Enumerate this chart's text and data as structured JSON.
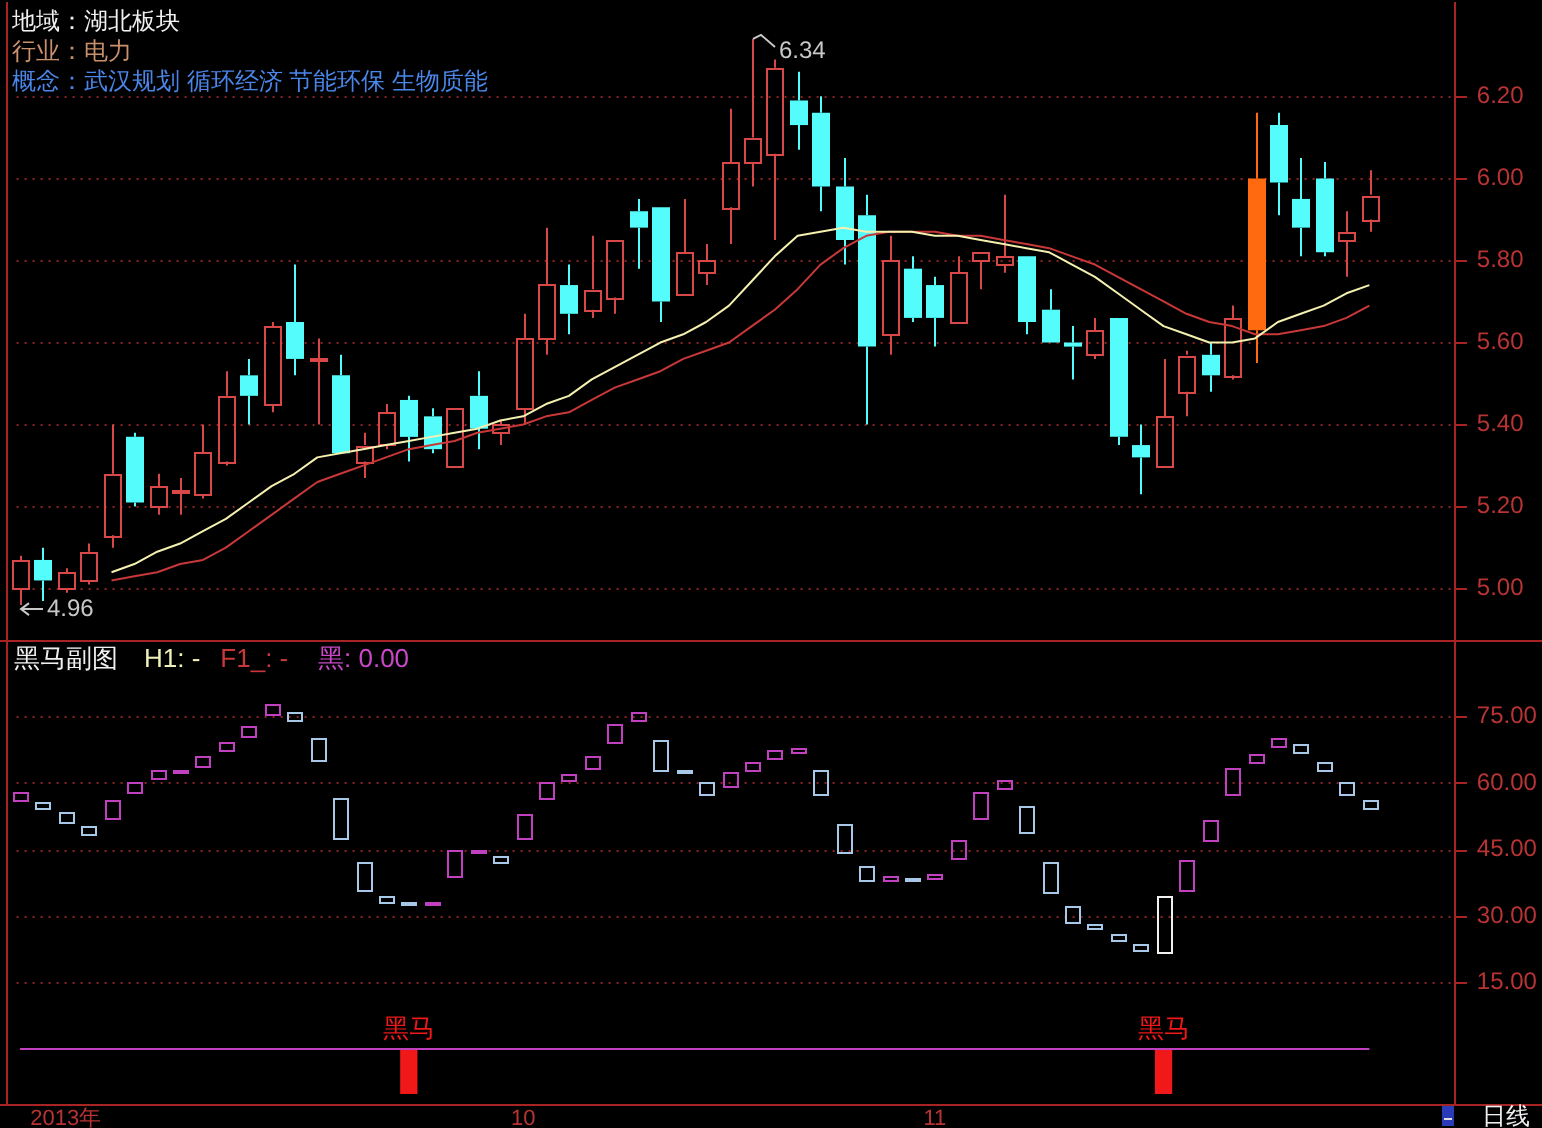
{
  "chart_data": [
    {
      "type": "candlestick",
      "categories": [
        null,
        null,
        null,
        null,
        null,
        null,
        null,
        null,
        null,
        null,
        null,
        null,
        null,
        null,
        null,
        null,
        null,
        null,
        null,
        null,
        null,
        null,
        null,
        null,
        null,
        null,
        null,
        null,
        null,
        null,
        null,
        null,
        null,
        null,
        null,
        null,
        null,
        null,
        null,
        null,
        null,
        null,
        null,
        null,
        null,
        null,
        null,
        null,
        null,
        null,
        null,
        null,
        null,
        null,
        null,
        null,
        null,
        null,
        null,
        null
      ],
      "ohlc": [
        [
          5.0,
          5.08,
          4.96,
          5.07
        ],
        [
          5.07,
          5.1,
          4.97,
          5.02
        ],
        [
          5.0,
          5.05,
          4.99,
          5.04
        ],
        [
          5.02,
          5.11,
          5.01,
          5.09
        ],
        [
          5.13,
          5.4,
          5.1,
          5.28
        ],
        [
          5.37,
          5.38,
          5.2,
          5.21
        ],
        [
          5.2,
          5.28,
          5.18,
          5.25
        ],
        [
          5.24,
          5.27,
          5.18,
          5.24
        ],
        [
          5.23,
          5.4,
          5.22,
          5.33
        ],
        [
          5.31,
          5.53,
          5.3,
          5.47
        ],
        [
          5.52,
          5.56,
          5.4,
          5.47
        ],
        [
          5.45,
          5.65,
          5.43,
          5.64
        ],
        [
          5.65,
          5.79,
          5.52,
          5.56
        ],
        [
          5.56,
          5.61,
          5.4,
          5.56
        ],
        [
          5.52,
          5.57,
          5.33,
          5.33
        ],
        [
          5.31,
          5.38,
          5.27,
          5.35
        ],
        [
          5.35,
          5.45,
          5.34,
          5.43
        ],
        [
          5.46,
          5.47,
          5.31,
          5.37
        ],
        [
          5.42,
          5.44,
          5.33,
          5.34
        ],
        [
          5.3,
          5.44,
          5.3,
          5.44
        ],
        [
          5.47,
          5.53,
          5.34,
          5.39
        ],
        [
          5.38,
          5.41,
          5.35,
          5.4
        ],
        [
          5.44,
          5.67,
          5.4,
          5.61
        ],
        [
          5.61,
          5.88,
          5.57,
          5.74
        ],
        [
          5.74,
          5.79,
          5.62,
          5.67
        ],
        [
          5.68,
          5.86,
          5.66,
          5.73
        ],
        [
          5.71,
          5.85,
          5.67,
          5.85
        ],
        [
          5.92,
          5.95,
          5.78,
          5.88
        ],
        [
          5.93,
          5.93,
          5.65,
          5.7
        ],
        [
          5.72,
          5.95,
          5.72,
          5.82
        ],
        [
          5.77,
          5.84,
          5.74,
          5.8
        ],
        [
          5.93,
          6.17,
          5.84,
          6.04
        ],
        [
          6.04,
          6.34,
          5.98,
          6.1
        ],
        [
          6.06,
          6.29,
          5.85,
          6.27
        ],
        [
          6.19,
          6.26,
          6.07,
          6.13
        ],
        [
          6.16,
          6.2,
          5.92,
          5.98
        ],
        [
          5.98,
          6.05,
          5.79,
          5.85
        ],
        [
          5.91,
          5.96,
          5.4,
          5.59
        ],
        [
          5.62,
          5.86,
          5.57,
          5.8
        ],
        [
          5.78,
          5.81,
          5.65,
          5.66
        ],
        [
          5.74,
          5.76,
          5.59,
          5.66
        ],
        [
          5.65,
          5.81,
          5.65,
          5.77
        ],
        [
          5.8,
          5.82,
          5.73,
          5.82
        ],
        [
          5.79,
          5.96,
          5.77,
          5.81
        ],
        [
          5.81,
          5.81,
          5.62,
          5.65
        ],
        [
          5.68,
          5.73,
          5.6,
          5.6
        ],
        [
          5.6,
          5.64,
          5.51,
          5.59
        ],
        [
          5.57,
          5.66,
          5.56,
          5.63
        ],
        [
          5.66,
          5.66,
          5.35,
          5.37
        ],
        [
          5.35,
          5.4,
          5.23,
          5.32
        ],
        [
          5.3,
          5.56,
          5.3,
          5.42
        ],
        [
          5.48,
          5.58,
          5.42,
          5.57
        ],
        [
          5.57,
          5.6,
          5.48,
          5.52
        ],
        [
          5.52,
          5.69,
          5.51,
          5.66
        ],
        [
          5.63,
          6.16,
          5.55,
          6.0
        ],
        [
          6.13,
          6.16,
          5.91,
          5.99
        ],
        [
          5.95,
          6.05,
          5.81,
          5.88
        ],
        [
          6.0,
          6.04,
          5.81,
          5.82
        ],
        [
          5.85,
          5.92,
          5.76,
          5.87
        ],
        [
          5.9,
          6.02,
          5.87,
          5.96
        ]
      ],
      "colors": [
        "#d84848",
        "#54fcfc",
        "#d84848",
        "#d84848",
        "#d84848",
        "#54fcfc",
        "#d84848",
        "#d84848",
        "#d84848",
        "#d84848",
        "#54fcfc",
        "#d84848",
        "#54fcfc",
        "#d84848",
        "#54fcfc",
        "#d84848",
        "#d84848",
        "#54fcfc",
        "#54fcfc",
        "#d84848",
        "#54fcfc",
        "#d84848",
        "#d84848",
        "#d84848",
        "#54fcfc",
        "#d84848",
        "#d84848",
        "#54fcfc",
        "#54fcfc",
        "#d84848",
        "#d84848",
        "#d84848",
        "#d84848",
        "#d84848",
        "#54fcfc",
        "#54fcfc",
        "#54fcfc",
        "#54fcfc",
        "#d84848",
        "#54fcfc",
        "#54fcfc",
        "#d84848",
        "#d84848",
        "#d84848",
        "#54fcfc",
        "#54fcfc",
        "#54fcfc",
        "#d84848",
        "#54fcfc",
        "#54fcfc",
        "#d84848",
        "#d84848",
        "#54fcfc",
        "#d84848",
        "#ff6a10",
        "#54fcfc",
        "#54fcfc",
        "#54fcfc",
        "#d84848",
        "#d84848"
      ],
      "series": [
        {
          "type": "line",
          "color": "#f4f0b0",
          "values": [
            null,
            null,
            null,
            null,
            5.04,
            5.06,
            5.09,
            5.11,
            5.14,
            5.17,
            5.21,
            5.25,
            5.28,
            5.32,
            5.33,
            5.34,
            5.35,
            5.36,
            5.37,
            5.38,
            5.39,
            5.41,
            5.42,
            5.45,
            5.47,
            5.51,
            5.54,
            5.57,
            5.6,
            5.62,
            5.65,
            5.69,
            5.75,
            5.81,
            5.86,
            5.87,
            5.88,
            5.87,
            5.87,
            5.87,
            5.86,
            5.86,
            5.85,
            5.84,
            5.83,
            5.82,
            5.79,
            5.76,
            5.72,
            5.68,
            5.64,
            5.62,
            5.6,
            5.6,
            5.61,
            5.65,
            5.67,
            5.69,
            5.72,
            5.74
          ]
        },
        {
          "type": "line",
          "color": "#c83838",
          "values": [
            null,
            null,
            null,
            null,
            5.02,
            5.03,
            5.04,
            5.06,
            5.07,
            5.1,
            5.14,
            5.18,
            5.22,
            5.26,
            5.28,
            5.3,
            5.32,
            5.34,
            5.35,
            5.36,
            5.38,
            5.39,
            5.4,
            5.42,
            5.43,
            5.46,
            5.49,
            5.51,
            5.53,
            5.56,
            5.58,
            5.6,
            5.64,
            5.68,
            5.73,
            5.79,
            5.83,
            5.86,
            5.87,
            5.87,
            5.87,
            5.86,
            5.86,
            5.85,
            5.84,
            5.83,
            5.81,
            5.79,
            5.76,
            5.73,
            5.7,
            5.67,
            5.65,
            5.64,
            5.62,
            5.62,
            5.63,
            5.64,
            5.66,
            5.69
          ]
        }
      ],
      "ylim": [
        4.87,
        6.43
      ],
      "yticks": [
        {
          "value": 5,
          "label": "5.00"
        },
        {
          "value": 5.2,
          "label": "5.20"
        },
        {
          "value": 5.4,
          "label": "5.40"
        },
        {
          "value": 5.6,
          "label": "5.60"
        },
        {
          "value": 5.8,
          "label": "5.80"
        },
        {
          "value": 6,
          "label": "6.00"
        },
        {
          "value": 6.2,
          "label": "6.20"
        }
      ],
      "grid": "y",
      "tick_labels": "y",
      "annotations": [
        "地域：湖北板块",
        "行业：电力",
        "概念：武汉规划 循环经济 节能环保 生物质能",
        "6.34",
        "4.96"
      ]
    },
    {
      "type": "candlestick",
      "title": "黑马副图",
      "categories": [
        null,
        null,
        "2013年",
        null,
        null,
        null,
        null,
        null,
        null,
        null,
        null,
        null,
        null,
        null,
        null,
        null,
        null,
        null,
        null,
        null,
        null,
        null,
        "10",
        null,
        null,
        null,
        null,
        null,
        null,
        null,
        null,
        null,
        null,
        null,
        null,
        null,
        null,
        null,
        null,
        null,
        "11",
        null,
        null,
        null,
        null,
        null,
        null,
        null,
        null,
        null,
        null,
        null,
        null,
        null,
        null,
        null,
        null,
        null,
        null,
        null
      ],
      "ohlc": [
        [
          56.0,
          58.0,
          56.0,
          58.0
        ],
        [
          56.0,
          56.0,
          54.5,
          54.5
        ],
        [
          53.5,
          53.5,
          51.4,
          51.4
        ],
        [
          50.5,
          50.5,
          48.7,
          48.7
        ],
        [
          52.3,
          56.2,
          52.3,
          56.2
        ],
        [
          58.1,
          60.3,
          58.1,
          60.3
        ],
        [
          61.2,
          63.0,
          61.2,
          63.0
        ],
        [
          62.7,
          63.0,
          62.7,
          63.0
        ],
        [
          64.0,
          66.1,
          64.0,
          66.1
        ],
        [
          67.5,
          69.4,
          67.5,
          69.4
        ],
        [
          70.8,
          72.9,
          70.8,
          72.9
        ],
        [
          75.3,
          77.7,
          75.3,
          77.7
        ],
        [
          75.9,
          75.9,
          73.9,
          73.9
        ],
        [
          70.2,
          70.2,
          65.4,
          65.4
        ],
        [
          56.6,
          56.6,
          47.8,
          47.8
        ],
        [
          42.2,
          42.2,
          36.0,
          36.0
        ],
        [
          34.4,
          34.4,
          32.9,
          32.9
        ],
        [
          33.2,
          33.2,
          32.7,
          32.7
        ],
        [
          32.7,
          33.2,
          32.7,
          33.2
        ],
        [
          38.9,
          44.6,
          38.9,
          44.6
        ],
        [
          44.6,
          45.0,
          44.6,
          45.0
        ],
        [
          43.5,
          43.5,
          42.3,
          42.3
        ],
        [
          47.5,
          53.0,
          47.5,
          53.0
        ],
        [
          56.3,
          60.1,
          56.3,
          60.1
        ],
        [
          60.9,
          62.2,
          60.9,
          62.2
        ],
        [
          63.6,
          66.1,
          63.6,
          66.1
        ],
        [
          69.3,
          73.3,
          69.3,
          73.3
        ],
        [
          74.4,
          76.1,
          74.4,
          76.1
        ],
        [
          69.7,
          69.7,
          63.1,
          63.1
        ],
        [
          62.8,
          62.8,
          62.2,
          62.2
        ],
        [
          60.1,
          60.1,
          57.4,
          57.4
        ],
        [
          59.5,
          62.5,
          59.5,
          62.5
        ],
        [
          63.1,
          64.9,
          63.1,
          64.9
        ],
        [
          65.7,
          67.5,
          65.7,
          67.5
        ],
        [
          67.2,
          67.9,
          67.2,
          67.9
        ],
        [
          62.7,
          62.7,
          57.4,
          57.4
        ],
        [
          50.8,
          50.8,
          44.3,
          44.3
        ],
        [
          41.3,
          41.3,
          38.0,
          38.0
        ],
        [
          38.3,
          39.0,
          38.3,
          39.0
        ],
        [
          38.7,
          38.7,
          38.4,
          38.4
        ],
        [
          38.7,
          39.5,
          38.7,
          39.5
        ],
        [
          42.9,
          47.0,
          42.9,
          47.0
        ],
        [
          52.3,
          58.0,
          52.3,
          58.0
        ],
        [
          59.0,
          60.6,
          59.0,
          60.6
        ],
        [
          54.8,
          54.8,
          48.8,
          48.8
        ],
        [
          42.2,
          42.2,
          35.3,
          35.3
        ],
        [
          32.1,
          32.1,
          28.6,
          28.6
        ],
        [
          28.3,
          28.3,
          27.4,
          27.4
        ],
        [
          26.2,
          26.2,
          24.7,
          24.7
        ],
        [
          23.5,
          23.5,
          22.2,
          22.2
        ],
        [
          21.7,
          34.4,
          21.7,
          34.4
        ],
        [
          35.6,
          42.5,
          35.6,
          42.5
        ],
        [
          47.0,
          51.5,
          47.0,
          51.5
        ],
        [
          57.4,
          63.3,
          57.4,
          63.3
        ],
        [
          64.6,
          66.6,
          64.6,
          66.6
        ],
        [
          68.2,
          70.2,
          68.2,
          70.2
        ],
        [
          68.8,
          68.8,
          66.9,
          66.9
        ],
        [
          64.8,
          64.8,
          62.8,
          62.8
        ],
        [
          60.1,
          60.1,
          57.4,
          57.4
        ],
        [
          56.0,
          56.0,
          54.2,
          54.2
        ]
      ],
      "colors": [
        "#c040c0",
        "#a8c8e8",
        "#a8c8e8",
        "#a8c8e8",
        "#c040c0",
        "#c040c0",
        "#c040c0",
        "#c040c0",
        "#c040c0",
        "#c040c0",
        "#c040c0",
        "#c040c0",
        "#a8c8e8",
        "#a8c8e8",
        "#a8c8e8",
        "#a8c8e8",
        "#a8c8e8",
        "#a8c8e8",
        "#c040c0",
        "#c040c0",
        "#c040c0",
        "#a8c8e8",
        "#c040c0",
        "#c040c0",
        "#c040c0",
        "#c040c0",
        "#c040c0",
        "#c040c0",
        "#a8c8e8",
        "#a8c8e8",
        "#a8c8e8",
        "#c040c0",
        "#c040c0",
        "#c040c0",
        "#c040c0",
        "#a8c8e8",
        "#a8c8e8",
        "#a8c8e8",
        "#c040c0",
        "#a8c8e8",
        "#c040c0",
        "#c040c0",
        "#c040c0",
        "#c040c0",
        "#a8c8e8",
        "#a8c8e8",
        "#a8c8e8",
        "#a8c8e8",
        "#a8c8e8",
        "#a8c8e8",
        "#f0f0f0",
        "#c040c0",
        "#c040c0",
        "#c040c0",
        "#c040c0",
        "#c040c0",
        "#a8c8e8",
        "#a8c8e8",
        "#a8c8e8",
        "#a8c8e8"
      ],
      "series": [
        {
          "type": "line",
          "color": "#c040c0",
          "values": [
            0,
            0,
            0,
            0,
            0,
            0,
            0,
            0,
            0,
            0,
            0,
            0,
            0,
            0,
            0,
            0,
            0,
            0,
            0,
            0,
            0,
            0,
            0,
            0,
            0,
            0,
            0,
            0,
            0,
            0,
            0,
            0,
            0,
            0,
            0,
            0,
            0,
            0,
            0,
            0,
            0,
            0,
            0,
            0,
            0,
            0,
            0,
            0,
            0,
            0,
            0,
            0,
            0,
            0,
            0,
            0,
            0,
            0,
            0,
            0
          ]
        },
        {
          "type": "bar",
          "color": "#f01818",
          "values": [
            null,
            null,
            null,
            null,
            null,
            null,
            null,
            null,
            null,
            null,
            null,
            null,
            null,
            null,
            null,
            null,
            null,
            -10,
            null,
            null,
            null,
            null,
            null,
            null,
            null,
            null,
            null,
            null,
            null,
            null,
            null,
            null,
            null,
            null,
            null,
            null,
            null,
            null,
            null,
            null,
            null,
            null,
            null,
            null,
            null,
            null,
            null,
            null,
            null,
            null,
            -10,
            null,
            null,
            null,
            null,
            null,
            null,
            null,
            null,
            null
          ],
          "value_labels": [
            null,
            null,
            null,
            null,
            null,
            null,
            null,
            null,
            null,
            null,
            null,
            null,
            null,
            null,
            null,
            null,
            null,
            "黑马",
            null,
            null,
            null,
            null,
            null,
            null,
            null,
            null,
            null,
            null,
            null,
            null,
            null,
            null,
            null,
            null,
            null,
            null,
            null,
            null,
            null,
            null,
            null,
            null,
            null,
            null,
            null,
            null,
            null,
            null,
            null,
            null,
            "黑马",
            null,
            null,
            null,
            null,
            null,
            null,
            null,
            null,
            null
          ]
        }
      ],
      "ylim": [
        -12.4,
        91.8
      ],
      "yticks": [
        {
          "value": 15,
          "label": "15.00"
        },
        {
          "value": 30,
          "label": "30.00"
        },
        {
          "value": 45,
          "label": "45.00"
        },
        {
          "value": 60,
          "label": "60.00"
        },
        {
          "value": 75,
          "label": "75.00"
        }
      ],
      "grid": "y",
      "annotations": [
        "H1: -",
        "F1_: -",
        "黑: 0.00",
        "日线"
      ]
    }
  ]
}
